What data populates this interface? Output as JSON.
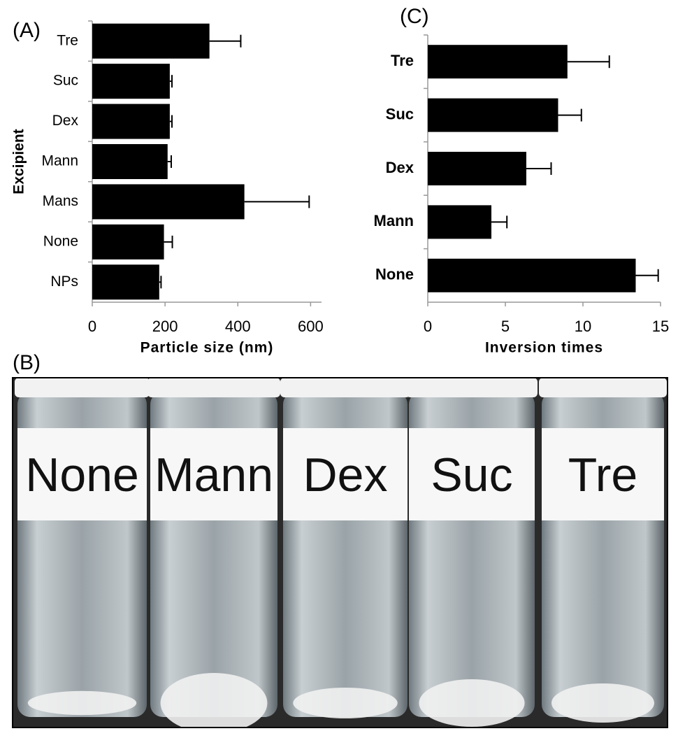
{
  "chart_data": [
    {
      "type": "barh",
      "title": "(A)",
      "x_label": "Particle size (nm)",
      "y_label": "Excipient",
      "categories": [
        "Tre",
        "Suc",
        "Dex",
        "Mann",
        "Mans",
        "None",
        "NPs"
      ],
      "values": [
        322,
        213,
        213,
        207,
        418,
        197,
        184
      ],
      "errors": [
        86,
        6,
        6,
        10,
        178,
        23,
        5
      ],
      "color": "#000000",
      "xlim": [
        0,
        630
      ],
      "xticks": [
        0,
        200,
        400,
        600
      ],
      "bold_categories": false
    },
    {
      "type": "barh",
      "title": "(C)",
      "x_label": "Inversion times",
      "categories": [
        "Tre",
        "Suc",
        "Dex",
        "Mann",
        "None"
      ],
      "values": [
        9.0,
        8.4,
        6.35,
        4.1,
        13.4
      ],
      "errors": [
        2.7,
        1.5,
        1.6,
        1.0,
        1.45
      ],
      "color": "#000000",
      "xlim": [
        0,
        15
      ],
      "xticks": [
        0,
        5,
        10,
        15
      ],
      "bold_categories": true
    }
  ],
  "photo": {
    "panel_label": "(B)",
    "vial_labels": [
      "None",
      "Mann",
      "Dex",
      "Suc",
      "Tre"
    ]
  }
}
